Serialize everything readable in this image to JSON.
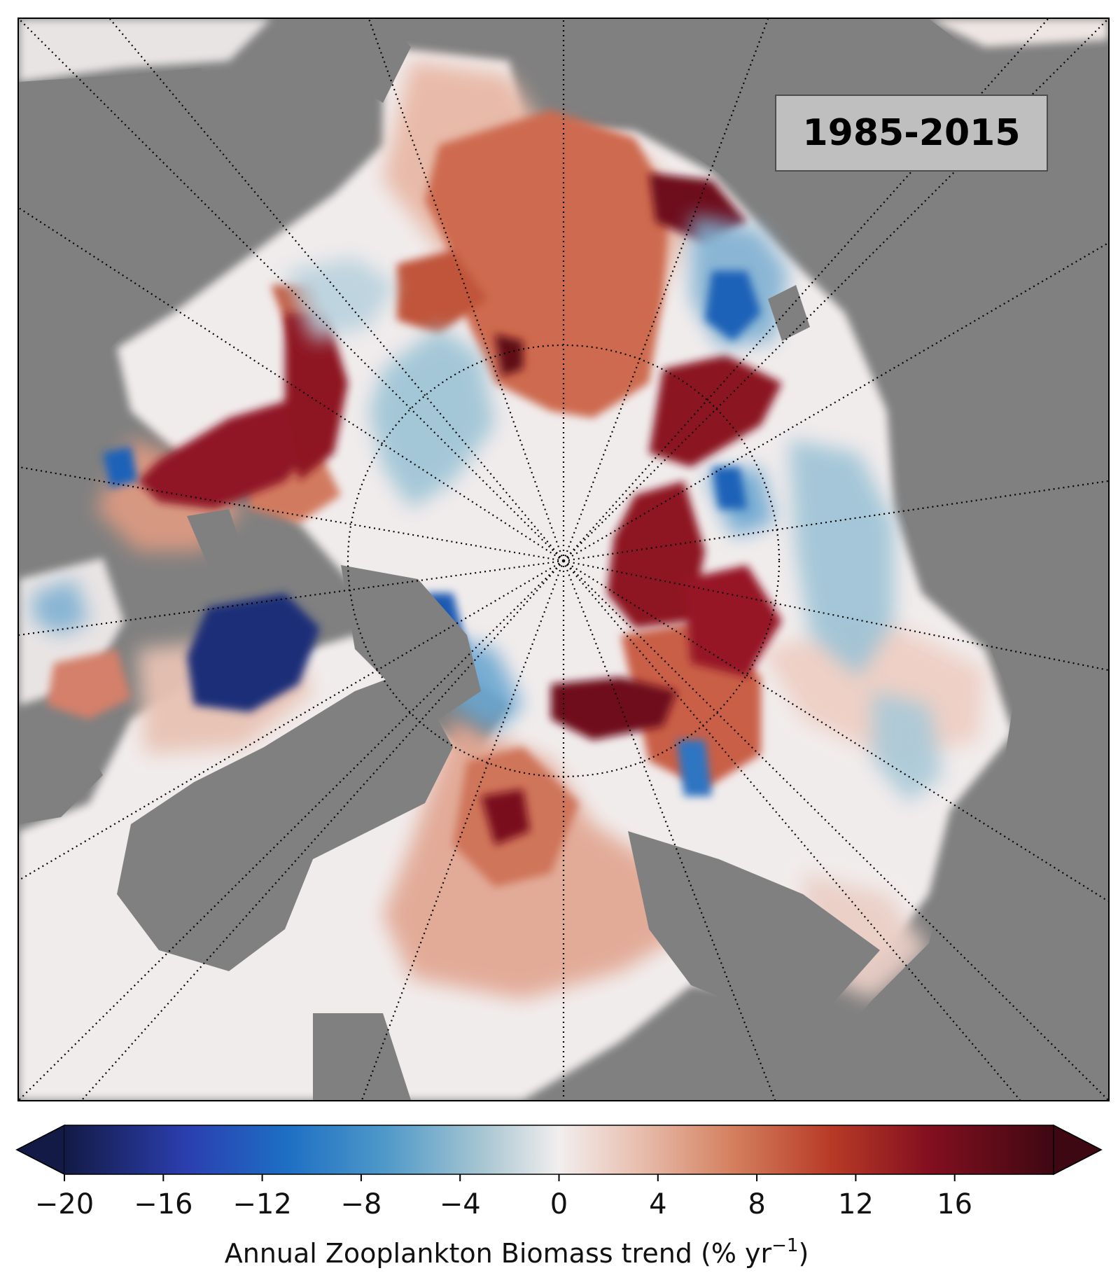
{
  "map": {
    "period_label": "1985-2015",
    "land_color": "#808080",
    "grid_style": "dotted"
  },
  "colorbar": {
    "label_text": "Annual Zooplankton Biomass trend (% yr",
    "label_superscript": "−1",
    "label_close": ")",
    "min": -20,
    "max": 20,
    "ticks": [
      "−20",
      "−16",
      "−12",
      "−8",
      "−4",
      "0",
      "4",
      "8",
      "12",
      "16"
    ],
    "tick_values": [
      -20,
      -16,
      -12,
      -8,
      -4,
      0,
      4,
      8,
      12,
      16
    ],
    "extend": "both",
    "colormap_stops": [
      {
        "value": -20,
        "color": "#131a45"
      },
      {
        "value": -15,
        "color": "#2b3fb0"
      },
      {
        "value": -11,
        "color": "#1d6fc4"
      },
      {
        "value": -7,
        "color": "#4f99c9"
      },
      {
        "value": -3,
        "color": "#a9c7d2"
      },
      {
        "value": 0,
        "color": "#f2eeee"
      },
      {
        "value": 3,
        "color": "#e9c2b3"
      },
      {
        "value": 7,
        "color": "#d4805f"
      },
      {
        "value": 11,
        "color": "#b83a26"
      },
      {
        "value": 15,
        "color": "#820f1f"
      },
      {
        "value": 20,
        "color": "#3e0812"
      }
    ]
  }
}
